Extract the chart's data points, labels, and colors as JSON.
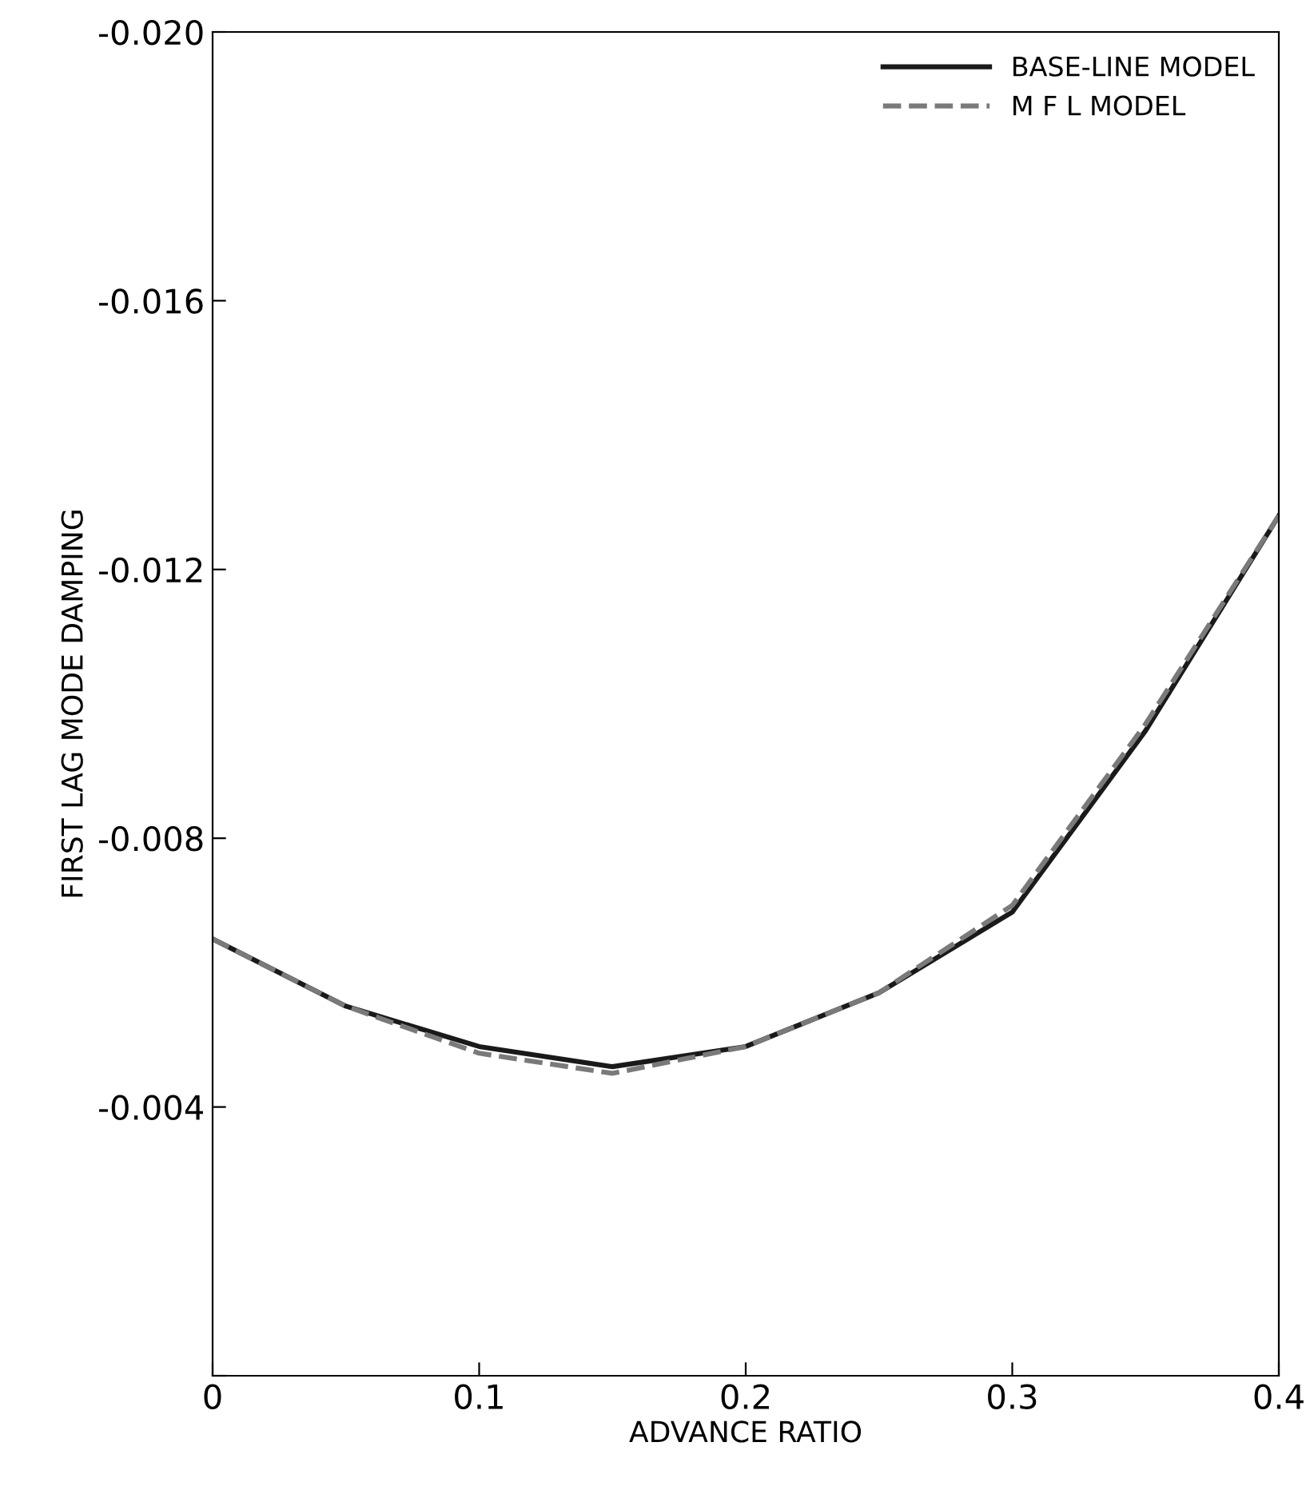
{
  "chart_data": {
    "type": "line",
    "xlabel": "ADVANCE RATIO",
    "ylabel": "FIRST LAG MODE DAMPING",
    "x": [
      0,
      0.05,
      0.1,
      0.15,
      0.2,
      0.25,
      0.3,
      0.35,
      0.4
    ],
    "series": [
      {
        "name": "BASE-LINE MODEL",
        "color": "#1a1a1a",
        "line_style": "solid",
        "values": [
          -0.0065,
          -0.0055,
          -0.0049,
          -0.0046,
          -0.0049,
          -0.0057,
          -0.0069,
          -0.0096,
          -0.0128
        ]
      },
      {
        "name": "M F L MODEL",
        "color": "#7a7a7a",
        "line_style": "dashed",
        "values": [
          -0.0065,
          -0.0055,
          -0.0048,
          -0.0045,
          -0.0049,
          -0.0057,
          -0.007,
          -0.0097,
          -0.0128
        ]
      }
    ],
    "xlim": [
      0,
      0.4
    ],
    "ylim": [
      0,
      -0.02
    ],
    "xticks": [
      0,
      0.1,
      0.2,
      0.3,
      0.4
    ],
    "yticks": [
      {
        "value": 0,
        "label": null
      },
      -0.004,
      -0.008,
      -0.012,
      -0.016,
      {
        "value": -0.02,
        "label": "-0.020"
      }
    ],
    "grid": false,
    "legend": "top right",
    "marker": "none"
  }
}
